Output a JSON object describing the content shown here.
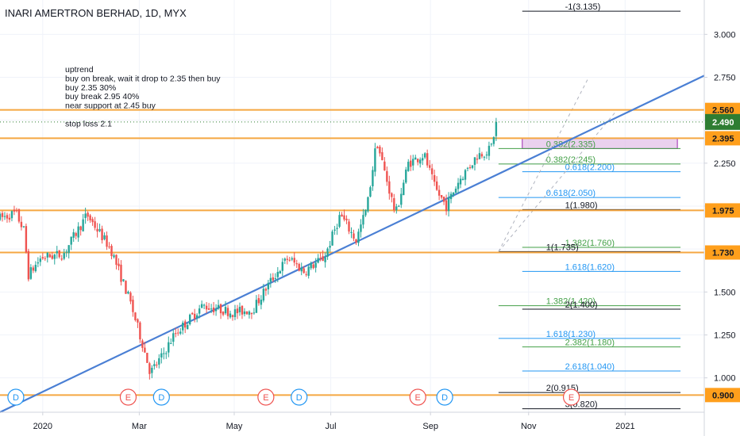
{
  "title": "INARI AMERTRON BERHAD, 1D, MYX",
  "notes": [
    "uptrend",
    "buy on break, wait it drop to 2.35 then buy",
    "buy 2.35 30%",
    "buy break 2.95 40%",
    "near support at 2.45 buy",
    "",
    "stop loss 2.1"
  ],
  "colors": {
    "up": "#26a69a",
    "down": "#ef5350",
    "trend": "#4a7fd4",
    "support": "#f5a742",
    "green_fib": "#43a047",
    "blue_fib": "#2196f3",
    "black_fib": "#131722",
    "last_price": "#2e7d32"
  },
  "chart_data": {
    "type": "candlestick",
    "title": "INARI AMERTRON BERHAD, 1D, MYX",
    "ylim": [
      0.8,
      3.2
    ],
    "y_ticks": [
      "3.000",
      "2.750",
      "2.500",
      "2.250",
      "2.000",
      "1.750",
      "1.500",
      "1.250",
      "1.000"
    ],
    "y_tick_values": [
      3.0,
      2.75,
      2.5,
      2.25,
      2.0,
      1.75,
      1.5,
      1.25,
      1.0
    ],
    "x_ticks": [
      "2020",
      "Mar",
      "May",
      "Jul",
      "Sep",
      "Nov",
      "2021"
    ],
    "x_tick_days": [
      17,
      78,
      138,
      199,
      262,
      324,
      385
    ],
    "x_range_days": [
      -10,
      435
    ],
    "last_price": "2.490",
    "last_price_value": 2.49,
    "price_path": [
      {
        "day": -10,
        "price": 1.93
      },
      {
        "day": 0,
        "price": 1.96
      },
      {
        "day": 5,
        "price": 1.86
      },
      {
        "day": 8,
        "price": 1.6
      },
      {
        "day": 16,
        "price": 1.7
      },
      {
        "day": 30,
        "price": 1.72
      },
      {
        "day": 45,
        "price": 1.95
      },
      {
        "day": 60,
        "price": 1.75
      },
      {
        "day": 72,
        "price": 1.45
      },
      {
        "day": 80,
        "price": 1.2
      },
      {
        "day": 85,
        "price": 1.03
      },
      {
        "day": 92,
        "price": 1.12
      },
      {
        "day": 100,
        "price": 1.25
      },
      {
        "day": 118,
        "price": 1.42
      },
      {
        "day": 138,
        "price": 1.38
      },
      {
        "day": 150,
        "price": 1.4
      },
      {
        "day": 160,
        "price": 1.55
      },
      {
        "day": 172,
        "price": 1.7
      },
      {
        "day": 182,
        "price": 1.62
      },
      {
        "day": 195,
        "price": 1.7
      },
      {
        "day": 205,
        "price": 1.95
      },
      {
        "day": 215,
        "price": 1.8
      },
      {
        "day": 222,
        "price": 2.0
      },
      {
        "day": 228,
        "price": 2.38
      },
      {
        "day": 240,
        "price": 1.95
      },
      {
        "day": 248,
        "price": 2.25
      },
      {
        "day": 258,
        "price": 2.3
      },
      {
        "day": 265,
        "price": 2.1
      },
      {
        "day": 272,
        "price": 2.0
      },
      {
        "day": 280,
        "price": 2.15
      },
      {
        "day": 292,
        "price": 2.3
      },
      {
        "day": 300,
        "price": 2.33
      },
      {
        "day": 304,
        "price": 2.5
      }
    ],
    "horizontal_levels": [
      {
        "value": 2.56,
        "label": "2.560",
        "color": "support"
      },
      {
        "value": 2.395,
        "label": "2.395",
        "color": "support"
      },
      {
        "value": 1.975,
        "label": "1.975",
        "color": "support"
      },
      {
        "value": 1.73,
        "label": "1.730",
        "color": "support"
      },
      {
        "value": 0.9,
        "label": "0.900",
        "color": "support"
      }
    ],
    "trendline": {
      "start": {
        "day": -10,
        "price": 0.8
      },
      "end": {
        "day": 435,
        "price": 2.76
      }
    },
    "fib_levels": [
      {
        "text": "-1(3.135)",
        "value": 3.135,
        "color": "black_fib",
        "from_day": 320,
        "to_day": 420
      },
      {
        "text": "0.382(2.335)",
        "value": 2.335,
        "color": "green_fib",
        "from_day": 305,
        "to_day": 420
      },
      {
        "text": "0.382(2.245)",
        "value": 2.245,
        "color": "green_fib",
        "from_day": 305,
        "to_day": 420
      },
      {
        "text": "0.618(2.200)",
        "value": 2.2,
        "color": "blue_fib",
        "from_day": 320,
        "to_day": 420
      },
      {
        "text": "0.618(2.050)",
        "value": 2.05,
        "color": "blue_fib",
        "from_day": 305,
        "to_day": 420
      },
      {
        "text": "1(1.980)",
        "value": 1.98,
        "color": "black_fib",
        "from_day": 320,
        "to_day": 420
      },
      {
        "text": "1.382(1.760)",
        "value": 1.76,
        "color": "green_fib",
        "from_day": 320,
        "to_day": 420
      },
      {
        "text": "1(1.735)",
        "value": 1.735,
        "color": "black_fib",
        "from_day": 305,
        "to_day": 420
      },
      {
        "text": "1.618(1.620)",
        "value": 1.62,
        "color": "blue_fib",
        "from_day": 320,
        "to_day": 420
      },
      {
        "text": "1.382(1.420)",
        "value": 1.42,
        "color": "green_fib",
        "from_day": 305,
        "to_day": 420
      },
      {
        "text": "2(1.400)",
        "value": 1.4,
        "color": "black_fib",
        "from_day": 320,
        "to_day": 420
      },
      {
        "text": "1.618(1.230)",
        "value": 1.23,
        "color": "blue_fib",
        "from_day": 305,
        "to_day": 420
      },
      {
        "text": "2.382(1.180)",
        "value": 1.18,
        "color": "green_fib",
        "from_day": 320,
        "to_day": 420
      },
      {
        "text": "2.618(1.040)",
        "value": 1.04,
        "color": "blue_fib",
        "from_day": 320,
        "to_day": 420
      },
      {
        "text": "2(0.915)",
        "value": 0.915,
        "color": "black_fib",
        "from_day": 305,
        "to_day": 420
      },
      {
        "text": "3(0.820)",
        "value": 0.82,
        "color": "black_fib",
        "from_day": 320,
        "to_day": 420
      }
    ],
    "zone": {
      "from_day": 320,
      "to_day": 418,
      "low": 2.335,
      "high": 2.395
    },
    "event_markers": [
      {
        "letter": "D",
        "day": 0,
        "kind": "dividend"
      },
      {
        "letter": "E",
        "day": 71,
        "kind": "earnings"
      },
      {
        "letter": "D",
        "day": 92,
        "kind": "dividend"
      },
      {
        "letter": "E",
        "day": 158,
        "kind": "earnings"
      },
      {
        "letter": "D",
        "day": 179,
        "kind": "dividend"
      },
      {
        "letter": "E",
        "day": 254,
        "kind": "earnings"
      },
      {
        "letter": "D",
        "day": 271,
        "kind": "dividend"
      },
      {
        "letter": "E",
        "day": 351,
        "kind": "earnings"
      }
    ]
  }
}
